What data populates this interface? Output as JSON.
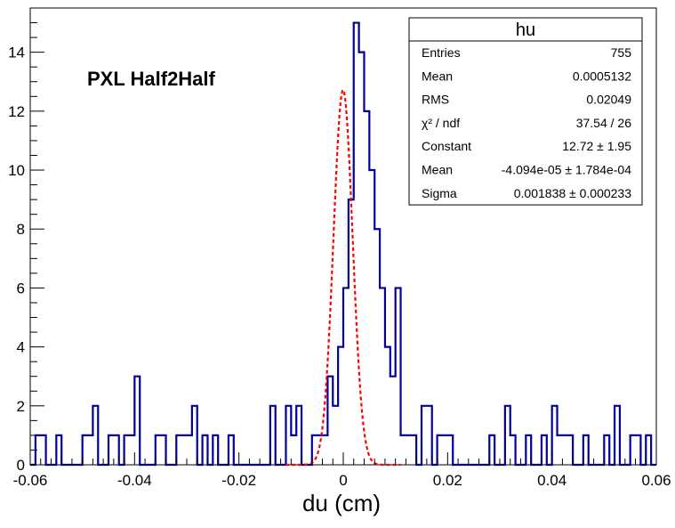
{
  "chart_data": {
    "type": "bar",
    "title": "PXL Half2Half",
    "xlabel": "du (cm)",
    "ylabel": "",
    "xlim": [
      -0.06,
      0.06
    ],
    "ylim": [
      0,
      15.5
    ],
    "grid": false,
    "x_ticks": [
      "-0.06",
      "-0.04",
      "-0.02",
      "0",
      "0.02",
      "0.04",
      "0.06"
    ],
    "x_tick_values": [
      -0.06,
      -0.04,
      -0.02,
      0,
      0.02,
      0.04,
      0.06
    ],
    "y_ticks": [
      "0",
      "2",
      "4",
      "6",
      "8",
      "10",
      "12",
      "14"
    ],
    "y_tick_values": [
      0,
      2,
      4,
      6,
      8,
      10,
      12,
      14
    ],
    "histogram": {
      "name": "hu",
      "bin_low": -0.06,
      "bin_width": 0.001,
      "counts": [
        0,
        1,
        1,
        0,
        0,
        1,
        0,
        0,
        0,
        0,
        1,
        1,
        2,
        0,
        0,
        1,
        1,
        0,
        1,
        1,
        3,
        0,
        0,
        0,
        1,
        1,
        0,
        0,
        1,
        1,
        1,
        2,
        0,
        1,
        0,
        1,
        0,
        0,
        1,
        0,
        0,
        0,
        0,
        0,
        0,
        0,
        2,
        0,
        0,
        2,
        1,
        2,
        0,
        0,
        1,
        1,
        1,
        3,
        2,
        4,
        6,
        9,
        15,
        14,
        12,
        10,
        8,
        6,
        4,
        3,
        6,
        1,
        1,
        1,
        0,
        2,
        2,
        0,
        1,
        1,
        1,
        0,
        0,
        0,
        0,
        0,
        0,
        0,
        1,
        0,
        0,
        2,
        1,
        0,
        0,
        1,
        0,
        0,
        1,
        0,
        2,
        1,
        1,
        1,
        0,
        0,
        1,
        0,
        0,
        0,
        1,
        0,
        2,
        0,
        0,
        1,
        1,
        0,
        1,
        0
      ]
    },
    "fit": {
      "name": "gaus",
      "line_color": "#ff0000",
      "constant": 12.72,
      "mean": -4.094e-05,
      "sigma": 0.001838
    },
    "colors": {
      "histogram_line": "#000099",
      "fit_line": "#ff0000",
      "axis": "#000000"
    }
  },
  "stats_box": {
    "title": "hu",
    "rows": [
      {
        "label": "Entries",
        "value": "755"
      },
      {
        "label": "Mean",
        "value": "0.0005132"
      },
      {
        "label": "RMS",
        "value": "0.02049"
      },
      {
        "label": "χ² / ndf",
        "value": "37.54 / 26"
      },
      {
        "label": "Constant",
        "value": "12.72 ± 1.95"
      },
      {
        "label": "Mean",
        "value": "-4.094e-05 ± 1.784e-04"
      },
      {
        "label": "Sigma",
        "value": "0.001838 ± 0.000233"
      }
    ]
  }
}
